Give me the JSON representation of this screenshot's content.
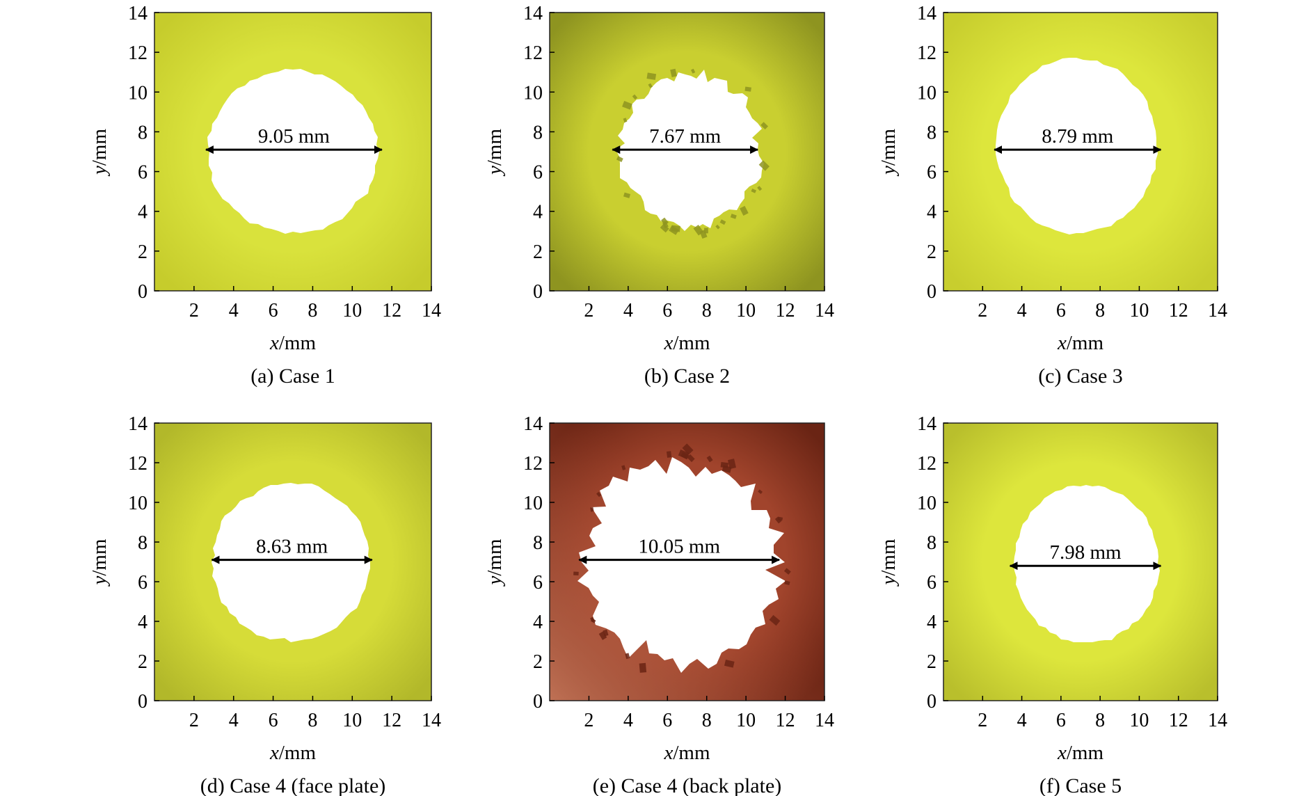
{
  "chart_data": [
    {
      "type": "heatmap",
      "caption": "(a) Case 1",
      "plate": "face",
      "xlabel_var": "x",
      "xlabel_unit": "/mm",
      "ylabel_var": "y",
      "ylabel_unit": "/mm",
      "xlim": [
        0,
        14
      ],
      "ylim": [
        0,
        14
      ],
      "xticks": [
        "2",
        "4",
        "6",
        "8",
        "10",
        "12",
        "14"
      ],
      "yticks": [
        "0",
        "2",
        "4",
        "6",
        "8",
        "10",
        "12",
        "14"
      ],
      "hole": {
        "center": [
          7.0,
          7.0
        ],
        "rx": 4.3,
        "ry": 4.1,
        "roughness": 0.12
      },
      "dimension": {
        "label": "9.05 mm",
        "x_start": 2.6,
        "x_end": 11.5,
        "y": 7.1
      },
      "fill_color": "#d9e23c",
      "shade_color": "#c6cc2c"
    },
    {
      "type": "heatmap",
      "caption": "(b) Case 2",
      "plate": "face",
      "xlabel_var": "x",
      "xlabel_unit": "/mm",
      "ylabel_var": "y",
      "ylabel_unit": "/mm",
      "xlim": [
        0,
        14
      ],
      "ylim": [
        0,
        14
      ],
      "xticks": [
        "2",
        "4",
        "6",
        "8",
        "10",
        "12",
        "14"
      ],
      "yticks": [
        "0",
        "2",
        "4",
        "6",
        "8",
        "10",
        "12",
        "14"
      ],
      "hole": {
        "center": [
          7.2,
          7.1
        ],
        "rx": 3.6,
        "ry": 3.9,
        "roughness": 0.45
      },
      "dimension": {
        "label": "7.67 mm",
        "x_start": 3.2,
        "x_end": 10.6,
        "y": 7.1
      },
      "fill_color": "#c9cf30",
      "shade_color": "#8e9420"
    },
    {
      "type": "heatmap",
      "caption": "(c) Case 3",
      "plate": "face",
      "xlabel_var": "x",
      "xlabel_unit": "/mm",
      "ylabel_var": "y",
      "ylabel_unit": "/mm",
      "xlim": [
        0,
        14
      ],
      "ylim": [
        0,
        14
      ],
      "xticks": [
        "2",
        "4",
        "6",
        "8",
        "10",
        "12",
        "14"
      ],
      "yticks": [
        "0",
        "2",
        "4",
        "6",
        "8",
        "10",
        "12",
        "14"
      ],
      "hole": {
        "center": [
          6.8,
          7.3
        ],
        "rx": 4.1,
        "ry": 4.4,
        "roughness": 0.1
      },
      "dimension": {
        "label": "8.79 mm",
        "x_start": 2.6,
        "x_end": 11.1,
        "y": 7.1
      },
      "fill_color": "#dde63c",
      "shade_color": "#c8ce2e"
    },
    {
      "type": "heatmap",
      "caption": "(d) Case 4 (face plate)",
      "plate": "face",
      "xlabel_var": "x",
      "xlabel_unit": "/mm",
      "ylabel_var": "y",
      "ylabel_unit": "/mm",
      "xlim": [
        0,
        14
      ],
      "ylim": [
        0,
        14
      ],
      "xticks": [
        "2",
        "4",
        "6",
        "8",
        "10",
        "12",
        "14"
      ],
      "yticks": [
        "0",
        "2",
        "4",
        "6",
        "8",
        "10",
        "12",
        "14"
      ],
      "hole": {
        "center": [
          6.9,
          7.0
        ],
        "rx": 4.0,
        "ry": 4.0,
        "roughness": 0.12
      },
      "dimension": {
        "label": "8.63 mm",
        "x_start": 2.9,
        "x_end": 11.0,
        "y": 7.1
      },
      "fill_color": "#d6dc38",
      "shade_color": "#b2b82a"
    },
    {
      "type": "heatmap",
      "caption": "(e) Case 4 (back plate)",
      "plate": "back",
      "xlabel_var": "x",
      "xlabel_unit": "/mm",
      "ylabel_var": "y",
      "ylabel_unit": "/mm",
      "xlim": [
        0,
        14
      ],
      "ylim": [
        0,
        14
      ],
      "xticks": [
        "2",
        "4",
        "6",
        "8",
        "10",
        "12",
        "14"
      ],
      "yticks": [
        "0",
        "2",
        "4",
        "6",
        "8",
        "10",
        "12",
        "14"
      ],
      "hole": {
        "center": [
          6.7,
          7.0
        ],
        "rx": 5.0,
        "ry": 5.2,
        "roughness": 0.5
      },
      "dimension": {
        "label": "10.05 mm",
        "x_start": 1.5,
        "x_end": 11.7,
        "y": 7.1
      },
      "fill_color": "#a1442c",
      "shade_color": "#6a2414"
    },
    {
      "type": "heatmap",
      "caption": "(f) Case 5",
      "plate": "face",
      "xlabel_var": "x",
      "xlabel_unit": "/mm",
      "ylabel_var": "y",
      "ylabel_unit": "/mm",
      "xlim": [
        0,
        14
      ],
      "ylim": [
        0,
        14
      ],
      "xticks": [
        "2",
        "4",
        "6",
        "8",
        "10",
        "12",
        "14"
      ],
      "yticks": [
        "0",
        "2",
        "4",
        "6",
        "8",
        "10",
        "12",
        "14"
      ],
      "hole": {
        "center": [
          7.3,
          6.9
        ],
        "rx": 3.7,
        "ry": 4.0,
        "roughness": 0.12
      },
      "dimension": {
        "label": "7.98 mm",
        "x_start": 3.4,
        "x_end": 11.1,
        "y": 6.8
      },
      "fill_color": "#dde63c",
      "shade_color": "#b9bf2c"
    }
  ]
}
